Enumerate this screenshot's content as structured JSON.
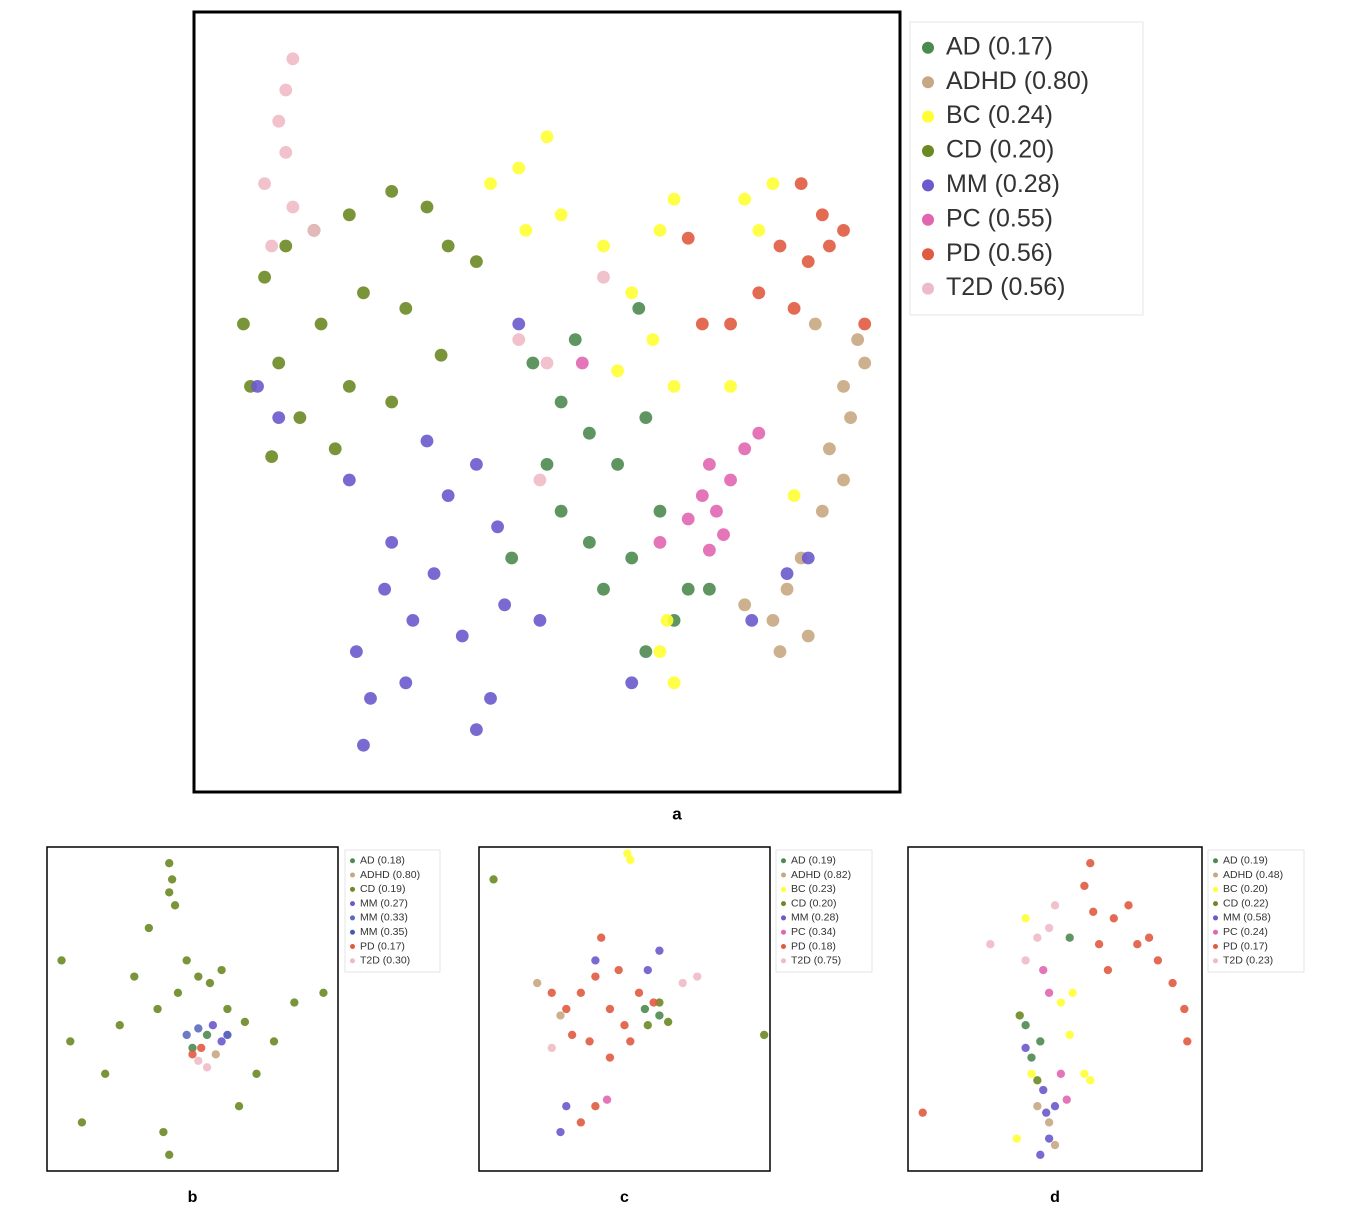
{
  "chart_data": [
    {
      "type": "scatter",
      "title": "a",
      "xlim": [
        0,
        100
      ],
      "ylim": [
        0,
        100
      ],
      "legend": "right-outside",
      "series": [
        {
          "name": "AD (0.17)",
          "color": "#4c8a50",
          "x": [
            48,
            52,
            56,
            60,
            64,
            52,
            56,
            58,
            62,
            66,
            50,
            54,
            45,
            68,
            64,
            70,
            73,
            63
          ],
          "y": [
            55,
            50,
            46,
            42,
            48,
            36,
            32,
            26,
            30,
            36,
            42,
            58,
            30,
            22,
            18,
            26,
            26,
            62
          ]
        },
        {
          "name": "ADHD (0.80)",
          "color": "#c8a882",
          "x": [
            94,
            95,
            92,
            93,
            90,
            92,
            89,
            86,
            84,
            82,
            87,
            83,
            78,
            88
          ],
          "y": [
            58,
            55,
            52,
            48,
            44,
            40,
            36,
            30,
            26,
            22,
            20,
            18,
            24,
            60
          ]
        },
        {
          "name": "BC (0.24)",
          "color": "#ffff33",
          "x": [
            42,
            46,
            50,
            47,
            52,
            58,
            62,
            65,
            60,
            66,
            68,
            68,
            78,
            82,
            80,
            66,
            68,
            67,
            76,
            85
          ],
          "y": [
            78,
            80,
            84,
            72,
            74,
            70,
            64,
            58,
            54,
            72,
            76,
            52,
            76,
            78,
            72,
            18,
            14,
            22,
            52,
            38
          ]
        },
        {
          "name": "CD (0.20)",
          "color": "#6b8a23",
          "x": [
            7,
            10,
            13,
            17,
            22,
            28,
            33,
            36,
            12,
            18,
            24,
            30,
            8,
            15,
            22,
            28,
            35,
            20,
            11,
            40
          ],
          "y": [
            60,
            66,
            70,
            72,
            74,
            77,
            75,
            70,
            55,
            60,
            64,
            62,
            52,
            48,
            52,
            50,
            56,
            44,
            43,
            68
          ]
        },
        {
          "name": "MM (0.28)",
          "color": "#6a5acd",
          "x": [
            24,
            25,
            23,
            30,
            31,
            34,
            28,
            36,
            40,
            43,
            44,
            42,
            40,
            38,
            27,
            12,
            9,
            33,
            22,
            46,
            49,
            62,
            84,
            87,
            79
          ],
          "y": [
            6,
            12,
            18,
            14,
            22,
            28,
            32,
            38,
            42,
            34,
            24,
            12,
            8,
            20,
            26,
            48,
            52,
            45,
            40,
            60,
            22,
            14,
            28,
            30,
            22
          ]
        },
        {
          "name": "PC (0.55)",
          "color": "#e066b0",
          "x": [
            72,
            74,
            76,
            78,
            80,
            73,
            70,
            75,
            73,
            55,
            66
          ],
          "y": [
            38,
            36,
            40,
            44,
            46,
            42,
            35,
            33,
            31,
            55,
            32
          ]
        },
        {
          "name": "PD (0.56)",
          "color": "#e05a40",
          "x": [
            86,
            89,
            90,
            87,
            83,
            80,
            76,
            72,
            85,
            92,
            70,
            95
          ],
          "y": [
            78,
            74,
            70,
            68,
            70,
            64,
            60,
            60,
            62,
            72,
            71,
            60
          ]
        },
        {
          "name": "T2D (0.56)",
          "color": "#efbac7",
          "x": [
            14,
            13,
            12,
            13,
            10,
            14,
            17,
            11,
            46,
            50,
            58,
            49
          ],
          "y": [
            94,
            90,
            86,
            82,
            78,
            75,
            72,
            70,
            58,
            55,
            66,
            40
          ]
        }
      ]
    },
    {
      "type": "scatter",
      "title": "b",
      "xlim": [
        0,
        100
      ],
      "ylim": [
        0,
        100
      ],
      "legend": "right-outside",
      "series": [
        {
          "name": "AD (0.18)",
          "color": "#4c8a50",
          "x": [
            55,
            50
          ],
          "y": [
            42,
            38
          ]
        },
        {
          "name": "ADHD (0.80)",
          "color": "#c8a882",
          "x": [
            58
          ],
          "y": [
            36
          ]
        },
        {
          "name": "CD (0.19)",
          "color": "#6b8a23",
          "x": [
            42,
            43,
            42,
            44,
            48,
            52,
            56,
            60,
            45,
            62,
            68,
            30,
            25,
            20,
            12,
            40,
            42,
            72,
            78,
            85,
            8,
            5,
            95,
            35,
            66,
            38
          ],
          "y": [
            95,
            90,
            86,
            82,
            65,
            60,
            58,
            62,
            55,
            50,
            46,
            60,
            45,
            30,
            15,
            12,
            5,
            30,
            40,
            52,
            40,
            65,
            55,
            75,
            20,
            50
          ]
        },
        {
          "name": "MM (0.27)",
          "color": "#6a5acd",
          "x": [
            57,
            60
          ],
          "y": [
            45,
            40
          ]
        },
        {
          "name": "MM (0.33)",
          "color": "#5a6bc0",
          "x": [
            48,
            52
          ],
          "y": [
            42,
            44
          ]
        },
        {
          "name": "MM (0.35)",
          "color": "#4a58b5",
          "x": [
            62
          ],
          "y": [
            42
          ]
        },
        {
          "name": "PD (0.17)",
          "color": "#e05a40",
          "x": [
            53,
            50
          ],
          "y": [
            38,
            36
          ]
        },
        {
          "name": "T2D (0.30)",
          "color": "#efbac7",
          "x": [
            52,
            55
          ],
          "y": [
            34,
            32
          ]
        }
      ]
    },
    {
      "type": "scatter",
      "title": "c",
      "xlim": [
        0,
        100
      ],
      "ylim": [
        0,
        100
      ],
      "legend": "right-outside",
      "series": [
        {
          "name": "AD (0.19)",
          "color": "#4c8a50",
          "x": [
            57,
            62
          ],
          "y": [
            50,
            48
          ]
        },
        {
          "name": "ADHD (0.82)",
          "color": "#c8a882",
          "x": [
            20,
            28
          ],
          "y": [
            58,
            48
          ]
        },
        {
          "name": "BC (0.23)",
          "color": "#ffff33",
          "x": [
            51,
            52
          ],
          "y": [
            98,
            96
          ]
        },
        {
          "name": "CD (0.20)",
          "color": "#6b8a23",
          "x": [
            58,
            62,
            65,
            5,
            98
          ],
          "y": [
            45,
            52,
            46,
            90,
            42
          ]
        },
        {
          "name": "MM (0.28)",
          "color": "#6a5acd",
          "x": [
            40,
            58,
            62,
            30,
            28
          ],
          "y": [
            65,
            62,
            68,
            20,
            12
          ]
        },
        {
          "name": "PC (0.34)",
          "color": "#e066b0",
          "x": [
            44
          ],
          "y": [
            22
          ]
        },
        {
          "name": "PD (0.18)",
          "color": "#e05a40",
          "x": [
            30,
            35,
            40,
            42,
            45,
            50,
            38,
            32,
            55,
            60,
            25,
            45,
            40,
            35,
            48,
            52
          ],
          "y": [
            50,
            55,
            60,
            72,
            50,
            45,
            40,
            42,
            55,
            52,
            55,
            35,
            20,
            15,
            62,
            40
          ]
        },
        {
          "name": "T2D (0.75)",
          "color": "#efbac7",
          "x": [
            70,
            75,
            25
          ],
          "y": [
            58,
            60,
            38
          ]
        }
      ]
    },
    {
      "type": "scatter",
      "title": "d",
      "xlim": [
        0,
        100
      ],
      "ylim": [
        0,
        100
      ],
      "legend": "right-outside",
      "series": [
        {
          "name": "AD (0.19)",
          "color": "#4c8a50",
          "x": [
            40,
            45,
            42,
            55
          ],
          "y": [
            45,
            40,
            35,
            72
          ]
        },
        {
          "name": "ADHD (0.48)",
          "color": "#c8a882",
          "x": [
            48,
            50,
            44
          ],
          "y": [
            15,
            8,
            20
          ]
        },
        {
          "name": "BC (0.20)",
          "color": "#ffff33",
          "x": [
            40,
            56,
            52,
            55,
            42,
            60,
            62,
            37
          ],
          "y": [
            78,
            55,
            52,
            42,
            30,
            30,
            28,
            10
          ]
        },
        {
          "name": "CD (0.22)",
          "color": "#6b8a23",
          "x": [
            38,
            44
          ],
          "y": [
            48,
            28
          ]
        },
        {
          "name": "MM (0.58)",
          "color": "#6a5acd",
          "x": [
            46,
            47,
            48,
            45,
            50,
            40
          ],
          "y": [
            25,
            18,
            10,
            5,
            20,
            38
          ]
        },
        {
          "name": "PC (0.24)",
          "color": "#e066b0",
          "x": [
            46,
            48,
            52,
            54
          ],
          "y": [
            62,
            55,
            30,
            22
          ]
        },
        {
          "name": "PD (0.17)",
          "color": "#e05a40",
          "x": [
            62,
            60,
            63,
            70,
            78,
            85,
            90,
            94,
            95,
            75,
            65,
            68,
            82,
            5
          ],
          "y": [
            95,
            88,
            80,
            78,
            70,
            65,
            58,
            50,
            40,
            82,
            70,
            62,
            72,
            18
          ]
        },
        {
          "name": "T2D (0.23)",
          "color": "#efbac7",
          "x": [
            48,
            44,
            28,
            40,
            50
          ],
          "y": [
            75,
            72,
            70,
            65,
            82
          ]
        }
      ]
    }
  ]
}
